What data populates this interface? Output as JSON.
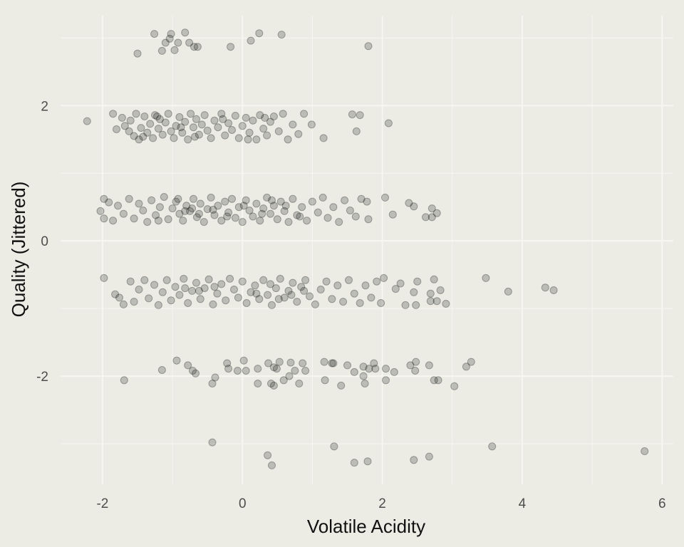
{
  "chart_data": {
    "type": "scatter",
    "title": "",
    "xlabel": "Volatile Acidity",
    "ylabel": "Quality (Jittered)",
    "xlim": [
      -2.6,
      6.16
    ],
    "ylim": [
      -3.6,
      3.33
    ],
    "x_ticks": [
      -2,
      0,
      2,
      4,
      6
    ],
    "x_tick_labels": [
      "-2",
      "0",
      "2",
      "4",
      "6"
    ],
    "y_ticks": [
      -2,
      0,
      2
    ],
    "y_tick_labels": [
      "-2",
      "0",
      "2"
    ],
    "grid": true,
    "background": "#ECECE5",
    "gridline_color": "#F7F7F2",
    "point_color": "#000000",
    "point_alpha": 0.2,
    "points": [
      [
        -1.26,
        3.06
      ],
      [
        -1.04,
        2.99
      ],
      [
        -1.1,
        2.93
      ],
      [
        -1.15,
        2.81
      ],
      [
        -0.97,
        2.82
      ],
      [
        -1.02,
        3.06
      ],
      [
        -0.82,
        3.08
      ],
      [
        -0.92,
        2.93
      ],
      [
        -0.76,
        2.93
      ],
      [
        -0.69,
        2.87
      ],
      [
        -0.64,
        2.87
      ],
      [
        -1.5,
        2.77
      ],
      [
        -0.17,
        2.87
      ],
      [
        0.12,
        2.96
      ],
      [
        0.24,
        3.07
      ],
      [
        0.56,
        3.05
      ],
      [
        1.8,
        2.88
      ],
      [
        -2.22,
        1.77
      ],
      [
        0.99,
        1.72
      ],
      [
        1.16,
        1.52
      ],
      [
        1.57,
        1.87
      ],
      [
        1.68,
        1.86
      ],
      [
        1.63,
        1.62
      ],
      [
        2.09,
        1.74
      ],
      [
        -1.85,
        1.88
      ],
      [
        -1.8,
        1.65
      ],
      [
        -1.72,
        1.82
      ],
      [
        -1.68,
        1.7
      ],
      [
        -1.6,
        1.78
      ],
      [
        -1.55,
        1.55
      ],
      [
        -1.52,
        1.88
      ],
      [
        -1.48,
        1.5
      ],
      [
        -1.45,
        1.67
      ],
      [
        -1.4,
        1.84
      ],
      [
        -1.36,
        1.6
      ],
      [
        -1.32,
        1.73
      ],
      [
        -1.28,
        1.52
      ],
      [
        -1.25,
        1.86
      ],
      [
        -1.2,
        1.66
      ],
      [
        -1.18,
        1.8
      ],
      [
        -1.14,
        1.57
      ],
      [
        -1.1,
        1.75
      ],
      [
        -1.06,
        1.88
      ],
      [
        -1.02,
        1.62
      ],
      [
        -0.98,
        1.52
      ],
      [
        -0.95,
        1.7
      ],
      [
        -0.9,
        1.83
      ],
      [
        -0.86,
        1.6
      ],
      [
        -0.82,
        1.76
      ],
      [
        -0.78,
        1.5
      ],
      [
        -0.74,
        1.88
      ],
      [
        -0.7,
        1.68
      ],
      [
        -0.66,
        1.8
      ],
      [
        -0.62,
        1.57
      ],
      [
        -0.58,
        1.72
      ],
      [
        -0.54,
        1.86
      ],
      [
        -0.5,
        1.63
      ],
      [
        -0.45,
        1.52
      ],
      [
        -0.4,
        1.78
      ],
      [
        -0.35,
        1.68
      ],
      [
        -0.3,
        1.88
      ],
      [
        -0.25,
        1.56
      ],
      [
        -0.2,
        1.74
      ],
      [
        -0.15,
        1.64
      ],
      [
        -0.1,
        1.85
      ],
      [
        -0.05,
        1.52
      ],
      [
        0.0,
        1.7
      ],
      [
        0.05,
        1.82
      ],
      [
        0.1,
        1.6
      ],
      [
        0.15,
        1.78
      ],
      [
        0.2,
        1.5
      ],
      [
        0.25,
        1.86
      ],
      [
        0.3,
        1.66
      ],
      [
        0.35,
        1.56
      ],
      [
        0.4,
        1.76
      ],
      [
        0.45,
        1.84
      ],
      [
        0.52,
        1.62
      ],
      [
        0.58,
        1.88
      ],
      [
        0.65,
        1.5
      ],
      [
        0.72,
        1.72
      ],
      [
        0.8,
        1.58
      ],
      [
        0.88,
        1.88
      ],
      [
        -1.62,
        1.62
      ],
      [
        -1.42,
        1.54
      ],
      [
        -1.22,
        1.84
      ],
      [
        -0.88,
        1.68
      ],
      [
        -0.68,
        1.54
      ],
      [
        -0.28,
        1.8
      ],
      [
        0.08,
        1.5
      ],
      [
        0.32,
        1.82
      ],
      [
        -2.03,
        0.44
      ],
      [
        -1.98,
        0.62
      ],
      [
        -1.91,
        0.57
      ],
      [
        -1.98,
        0.33
      ],
      [
        2.04,
        0.64
      ],
      [
        2.15,
        0.39
      ],
      [
        2.38,
        0.56
      ],
      [
        2.45,
        0.51
      ],
      [
        2.62,
        0.35
      ],
      [
        2.71,
        0.48
      ],
      [
        2.71,
        0.35
      ],
      [
        2.78,
        0.41
      ],
      [
        -1.85,
        0.3
      ],
      [
        -1.78,
        0.52
      ],
      [
        -1.7,
        0.4
      ],
      [
        -1.62,
        0.62
      ],
      [
        -1.55,
        0.33
      ],
      [
        -1.48,
        0.55
      ],
      [
        -1.42,
        0.45
      ],
      [
        -1.36,
        0.28
      ],
      [
        -1.3,
        0.6
      ],
      [
        -1.24,
        0.38
      ],
      [
        -1.18,
        0.5
      ],
      [
        -1.12,
        0.65
      ],
      [
        -1.06,
        0.32
      ],
      [
        -1.0,
        0.48
      ],
      [
        -0.95,
        0.58
      ],
      [
        -0.9,
        0.4
      ],
      [
        -0.85,
        0.3
      ],
      [
        -0.8,
        0.52
      ],
      [
        -0.75,
        0.44
      ],
      [
        -0.7,
        0.62
      ],
      [
        -0.65,
        0.35
      ],
      [
        -0.6,
        0.55
      ],
      [
        -0.55,
        0.28
      ],
      [
        -0.5,
        0.47
      ],
      [
        -0.45,
        0.64
      ],
      [
        -0.4,
        0.38
      ],
      [
        -0.35,
        0.52
      ],
      [
        -0.3,
        0.3
      ],
      [
        -0.25,
        0.58
      ],
      [
        -0.2,
        0.42
      ],
      [
        -0.15,
        0.62
      ],
      [
        -0.1,
        0.34
      ],
      [
        -0.05,
        0.5
      ],
      [
        0.0,
        0.28
      ],
      [
        0.05,
        0.6
      ],
      [
        0.1,
        0.45
      ],
      [
        0.15,
        0.36
      ],
      [
        0.2,
        0.55
      ],
      [
        0.25,
        0.3
      ],
      [
        0.3,
        0.48
      ],
      [
        0.35,
        0.64
      ],
      [
        0.4,
        0.4
      ],
      [
        0.45,
        0.52
      ],
      [
        0.5,
        0.32
      ],
      [
        0.55,
        0.58
      ],
      [
        0.6,
        0.44
      ],
      [
        0.66,
        0.28
      ],
      [
        0.72,
        0.62
      ],
      [
        0.78,
        0.38
      ],
      [
        0.85,
        0.5
      ],
      [
        0.92,
        0.3
      ],
      [
        1.0,
        0.58
      ],
      [
        1.08,
        0.42
      ],
      [
        1.15,
        0.64
      ],
      [
        1.22,
        0.34
      ],
      [
        1.3,
        0.5
      ],
      [
        1.38,
        0.28
      ],
      [
        1.46,
        0.6
      ],
      [
        1.54,
        0.45
      ],
      [
        1.62,
        0.36
      ],
      [
        1.7,
        0.62
      ],
      [
        1.78,
        0.58
      ],
      [
        1.8,
        0.32
      ],
      [
        -1.2,
        0.3
      ],
      [
        -0.92,
        0.62
      ],
      [
        -0.82,
        0.44
      ],
      [
        -0.72,
        0.48
      ],
      [
        -0.62,
        0.4
      ],
      [
        -0.42,
        0.46
      ],
      [
        -0.22,
        0.36
      ],
      [
        0.02,
        0.52
      ],
      [
        0.28,
        0.4
      ],
      [
        0.42,
        0.6
      ],
      [
        0.62,
        0.52
      ],
      [
        0.82,
        0.36
      ],
      [
        -1.98,
        -0.55
      ],
      [
        -1.82,
        -0.79
      ],
      [
        -1.76,
        -0.84
      ],
      [
        -1.7,
        -0.94
      ],
      [
        3.48,
        -0.55
      ],
      [
        3.8,
        -0.75
      ],
      [
        4.33,
        -0.69
      ],
      [
        4.45,
        -0.73
      ],
      [
        2.33,
        -0.95
      ],
      [
        2.48,
        -0.95
      ],
      [
        2.5,
        -0.6
      ],
      [
        2.69,
        -0.78
      ],
      [
        2.69,
        -0.89
      ],
      [
        2.74,
        -0.57
      ],
      [
        2.78,
        -0.89
      ],
      [
        2.83,
        -0.73
      ],
      [
        2.91,
        -0.93
      ],
      [
        2.19,
        -0.71
      ],
      [
        2.26,
        -0.63
      ],
      [
        2.45,
        -0.76
      ],
      [
        2.02,
        -0.55
      ],
      [
        -1.6,
        -0.6
      ],
      [
        -1.55,
        -0.9
      ],
      [
        -1.48,
        -0.72
      ],
      [
        -1.4,
        -0.58
      ],
      [
        -1.34,
        -0.85
      ],
      [
        -1.26,
        -0.65
      ],
      [
        -1.2,
        -0.95
      ],
      [
        -1.14,
        -0.76
      ],
      [
        -1.08,
        -0.58
      ],
      [
        -1.02,
        -0.88
      ],
      [
        -0.96,
        -0.68
      ],
      [
        -0.9,
        -0.8
      ],
      [
        -0.84,
        -0.56
      ],
      [
        -0.78,
        -0.92
      ],
      [
        -0.72,
        -0.74
      ],
      [
        -0.66,
        -0.62
      ],
      [
        -0.6,
        -0.86
      ],
      [
        -0.54,
        -0.7
      ],
      [
        -0.48,
        -0.57
      ],
      [
        -0.42,
        -0.94
      ],
      [
        -0.36,
        -0.78
      ],
      [
        -0.3,
        -0.64
      ],
      [
        -0.24,
        -0.88
      ],
      [
        -0.18,
        -0.56
      ],
      [
        -0.12,
        -0.72
      ],
      [
        -0.06,
        -0.84
      ],
      [
        0.0,
        -0.6
      ],
      [
        0.06,
        -0.92
      ],
      [
        0.12,
        -0.76
      ],
      [
        0.18,
        -0.66
      ],
      [
        0.24,
        -0.86
      ],
      [
        0.3,
        -0.58
      ],
      [
        0.36,
        -0.8
      ],
      [
        0.42,
        -0.95
      ],
      [
        0.48,
        -0.7
      ],
      [
        0.54,
        -0.56
      ],
      [
        0.6,
        -0.84
      ],
      [
        0.66,
        -0.74
      ],
      [
        0.72,
        -0.62
      ],
      [
        0.78,
        -0.9
      ],
      [
        0.84,
        -0.68
      ],
      [
        0.9,
        -0.58
      ],
      [
        0.96,
        -0.82
      ],
      [
        1.04,
        -0.94
      ],
      [
        1.12,
        -0.72
      ],
      [
        1.2,
        -0.6
      ],
      [
        1.28,
        -0.86
      ],
      [
        1.36,
        -0.66
      ],
      [
        1.44,
        -0.9
      ],
      [
        1.52,
        -0.58
      ],
      [
        1.6,
        -0.78
      ],
      [
        1.68,
        -0.92
      ],
      [
        1.76,
        -0.66
      ],
      [
        1.84,
        -0.84
      ],
      [
        1.92,
        -0.6
      ],
      [
        1.98,
        -0.92
      ],
      [
        -0.82,
        -0.7
      ],
      [
        -0.62,
        -0.74
      ],
      [
        -0.4,
        -0.68
      ],
      [
        0.2,
        -0.78
      ],
      [
        0.4,
        -0.64
      ],
      [
        0.52,
        -0.86
      ],
      [
        0.7,
        -0.8
      ],
      [
        0.88,
        -0.74
      ],
      [
        -1.15,
        -1.91
      ],
      [
        -1.69,
        -2.06
      ],
      [
        -0.94,
        -1.77
      ],
      [
        -0.78,
        -1.84
      ],
      [
        -0.71,
        -1.92
      ],
      [
        -0.67,
        -1.96
      ],
      [
        -0.43,
        -2.11
      ],
      [
        -0.39,
        -2.02
      ],
      [
        -0.22,
        -1.81
      ],
      [
        -0.2,
        -1.89
      ],
      [
        -0.07,
        -1.92
      ],
      [
        0.02,
        -1.77
      ],
      [
        0.05,
        -1.92
      ],
      [
        0.22,
        -1.89
      ],
      [
        0.22,
        -2.11
      ],
      [
        0.37,
        -1.81
      ],
      [
        0.41,
        -2.11
      ],
      [
        0.45,
        -2.14
      ],
      [
        0.45,
        -1.87
      ],
      [
        0.49,
        -1.89
      ],
      [
        0.53,
        -1.79
      ],
      [
        0.59,
        -2.06
      ],
      [
        0.67,
        -2.0
      ],
      [
        0.69,
        -1.8
      ],
      [
        0.75,
        -1.92
      ],
      [
        0.81,
        -2.11
      ],
      [
        0.86,
        -1.81
      ],
      [
        0.9,
        -1.92
      ],
      [
        1.17,
        -1.79
      ],
      [
        1.18,
        -2.06
      ],
      [
        1.28,
        -1.81
      ],
      [
        1.3,
        -1.81
      ],
      [
        1.41,
        -2.14
      ],
      [
        1.5,
        -1.84
      ],
      [
        1.6,
        -1.94
      ],
      [
        1.73,
        -1.86
      ],
      [
        1.73,
        -2.0
      ],
      [
        1.75,
        -2.11
      ],
      [
        1.81,
        -1.89
      ],
      [
        1.88,
        -1.81
      ],
      [
        1.9,
        -1.89
      ],
      [
        2.05,
        -1.89
      ],
      [
        2.05,
        -2.06
      ],
      [
        2.17,
        -1.94
      ],
      [
        2.4,
        -1.84
      ],
      [
        2.47,
        -1.92
      ],
      [
        2.48,
        -1.79
      ],
      [
        2.67,
        -1.84
      ],
      [
        2.74,
        -2.06
      ],
      [
        2.8,
        -2.06
      ],
      [
        3.03,
        -2.15
      ],
      [
        3.2,
        -1.86
      ],
      [
        3.27,
        -1.79
      ],
      [
        -0.43,
        -2.98
      ],
      [
        0.36,
        -3.17
      ],
      [
        0.42,
        -3.32
      ],
      [
        1.31,
        -3.04
      ],
      [
        1.6,
        -3.28
      ],
      [
        1.79,
        -3.26
      ],
      [
        2.45,
        -3.24
      ],
      [
        2.67,
        -3.19
      ],
      [
        3.57,
        -3.04
      ],
      [
        5.75,
        -3.11
      ]
    ]
  }
}
